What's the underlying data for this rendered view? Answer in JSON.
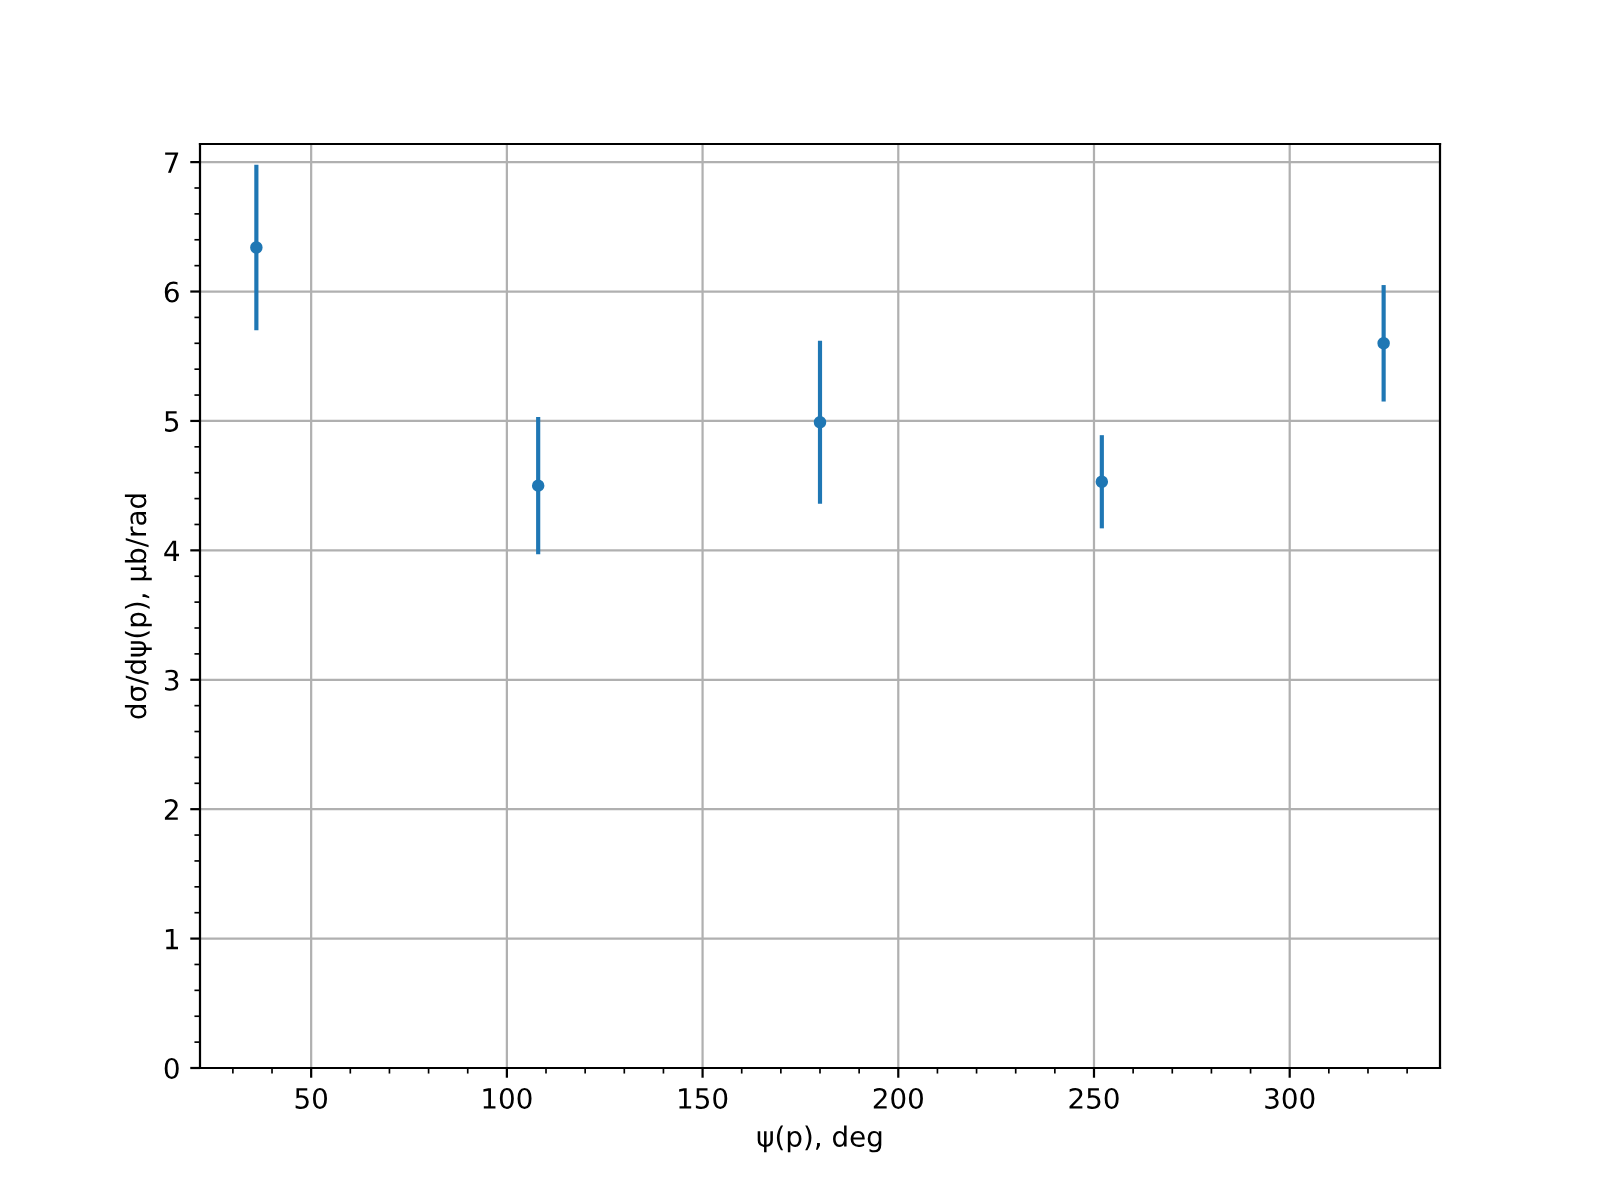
{
  "chart_data": {
    "type": "scatter",
    "xlabel": "ψ(p), deg",
    "ylabel": "dσ/dψ(p), μb/rad",
    "x": [
      36,
      108,
      180,
      252,
      324
    ],
    "series": [
      {
        "color": "#1f77b4",
        "values": [
          6.34,
          4.5,
          4.99,
          4.53,
          5.6
        ],
        "errors": [
          0.64,
          0.53,
          0.63,
          0.36,
          0.45
        ]
      }
    ],
    "xlim": [
      21.6,
      338.4
    ],
    "xticks": [
      50,
      100,
      150,
      200,
      250,
      300
    ],
    "ylim": [
      0,
      7.14
    ],
    "yticks": [
      0,
      1,
      2,
      3,
      4,
      5,
      6,
      7
    ],
    "grid": true,
    "marker": "circle"
  }
}
